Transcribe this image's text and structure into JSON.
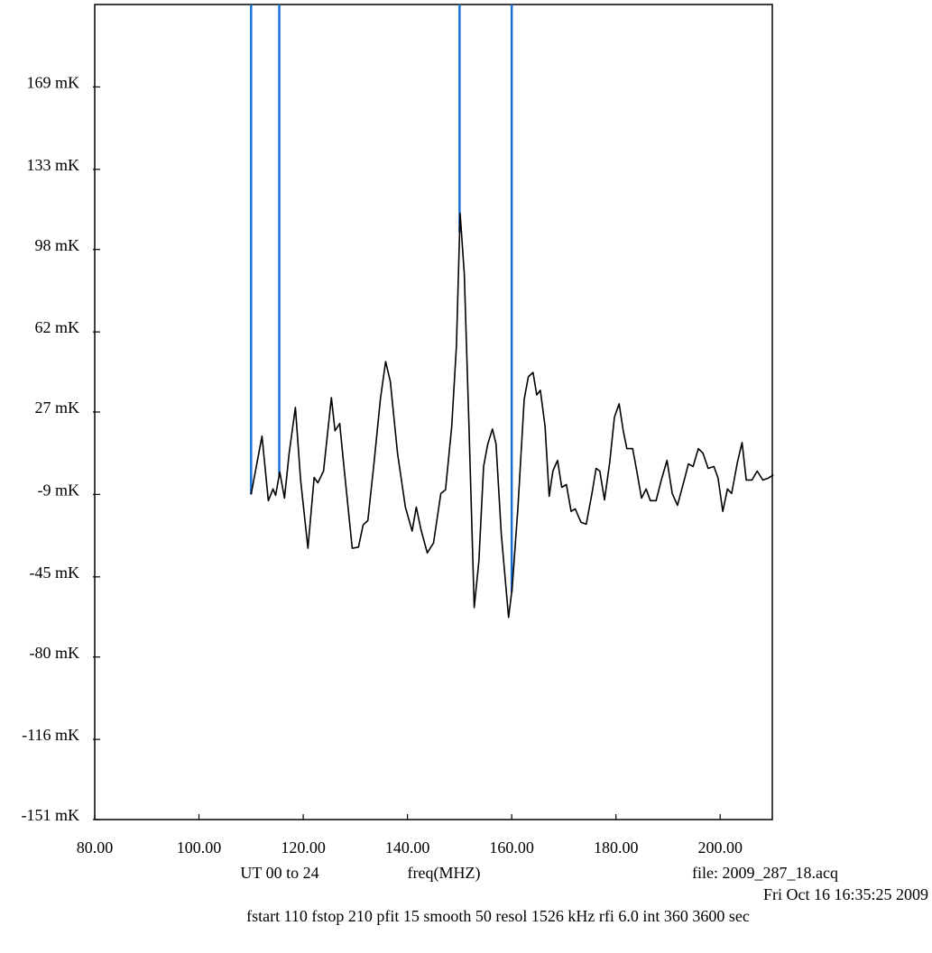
{
  "chart_data": {
    "type": "line",
    "xlabel": "freq(MHZ)",
    "annotations": [
      "UT 00 to 24",
      "file: 2009_287_18.acq",
      "Fri Oct 16 16:35:25 2009",
      "fstart 110 fstop 210 pfit 15 smooth 50 resol 1526 kHz rfi 6.0 int 360  3600 sec"
    ],
    "xlim": [
      80,
      210
    ],
    "ylim": [
      -151,
      205
    ],
    "xticks": [
      {
        "value": 80,
        "label": "80.00"
      },
      {
        "value": 100,
        "label": "100.00"
      },
      {
        "value": 120,
        "label": "120.00"
      },
      {
        "value": 140,
        "label": "140.00"
      },
      {
        "value": 160,
        "label": "160.00"
      },
      {
        "value": 180,
        "label": "180.00"
      },
      {
        "value": 200,
        "label": "200.00"
      }
    ],
    "yticks": [
      {
        "value": -151,
        "label": "-151 mK"
      },
      {
        "value": -116,
        "label": "-116 mK"
      },
      {
        "value": -80,
        "label": "-80 mK"
      },
      {
        "value": -45,
        "label": "-45 mK"
      },
      {
        "value": -9,
        "label": "-9 mK"
      },
      {
        "value": 27,
        "label": "27 mK"
      },
      {
        "value": 62,
        "label": "62 mK"
      },
      {
        "value": 98,
        "label": "98 mK"
      },
      {
        "value": 133,
        "label": "133 mK"
      },
      {
        "value": 169,
        "label": "169 mK"
      }
    ],
    "markers": {
      "color": "#1a6fd4",
      "x": [
        110,
        115.4,
        150,
        160
      ]
    },
    "x": [
      110,
      112.1,
      113.3,
      114.2,
      114.7,
      115.5,
      116.4,
      117.3,
      118.5,
      119.5,
      120.9,
      122.1,
      122.8,
      123.9,
      125.4,
      126.1,
      127.0,
      127.9,
      129.4,
      130.6,
      131.5,
      132.4,
      133.6,
      134.8,
      135.8,
      136.7,
      138.1,
      139.6,
      140.9,
      141.7,
      142.6,
      143.8,
      145.0,
      146.4,
      147.3,
      148.5,
      149.4,
      150.1,
      150.9,
      151.8,
      152.8,
      153.7,
      154.6,
      155.4,
      156.3,
      157.0,
      158.0,
      159.4,
      160.1,
      161.2,
      162.4,
      163.2,
      164.1,
      164.8,
      165.5,
      166.4,
      167.2,
      167.9,
      168.8,
      169.6,
      170.5,
      171.4,
      172.2,
      173.3,
      174.3,
      175.4,
      176.2,
      176.9,
      177.8,
      178.8,
      179.7,
      180.6,
      181.4,
      182.1,
      183.2,
      184.0,
      184.9,
      185.8,
      186.6,
      187.7,
      188.7,
      189.8,
      190.8,
      191.8,
      193.1,
      193.9,
      194.8,
      195.8,
      196.7,
      197.7,
      198.8,
      199.6,
      200.5,
      201.4,
      202.2,
      203.3,
      204.2,
      205.0,
      206.1,
      207.1,
      208.2,
      209.2,
      210.2
    ],
    "series": [
      {
        "color": "#000000",
        "values": [
          -9,
          16.5,
          -11.7,
          -6.6,
          -9.4,
          0.8,
          -10.6,
          9,
          29,
          -2.7,
          -32.5,
          -1.6,
          -3.9,
          1.2,
          33.3,
          18.8,
          22,
          1.2,
          -32.5,
          -32,
          -22.3,
          -20.4,
          5,
          32.6,
          49,
          40.4,
          9,
          -14.5,
          -25,
          -14.5,
          -24.4,
          -34.5,
          -30.2,
          -8.6,
          -7,
          20.8,
          56,
          113.7,
          87.4,
          20.8,
          -58.4,
          -38,
          3.2,
          13,
          19.6,
          13,
          -26.2,
          -62.7,
          -49.8,
          -14.5,
          32.6,
          42.4,
          44.3,
          34.5,
          36.5,
          20.8,
          -9.8,
          1.2,
          5.9,
          -5.9,
          -4.7,
          -16.4,
          -15.3,
          -21.2,
          -22,
          -8.6,
          2.4,
          1.2,
          -11.4,
          5,
          24.7,
          30.6,
          18.8,
          11,
          11,
          1.2,
          -10.6,
          -6.6,
          -11.7,
          -11.7,
          -2.7,
          5.9,
          -8.6,
          -13.7,
          -2.7,
          4.3,
          3.2,
          11,
          9,
          2.4,
          3.2,
          -1.9,
          -16.4,
          -6.6,
          -8.6,
          5,
          13.7,
          -2.7,
          -2.7,
          1.2,
          -2.7,
          -1.9,
          -0.4
        ]
      }
    ]
  }
}
